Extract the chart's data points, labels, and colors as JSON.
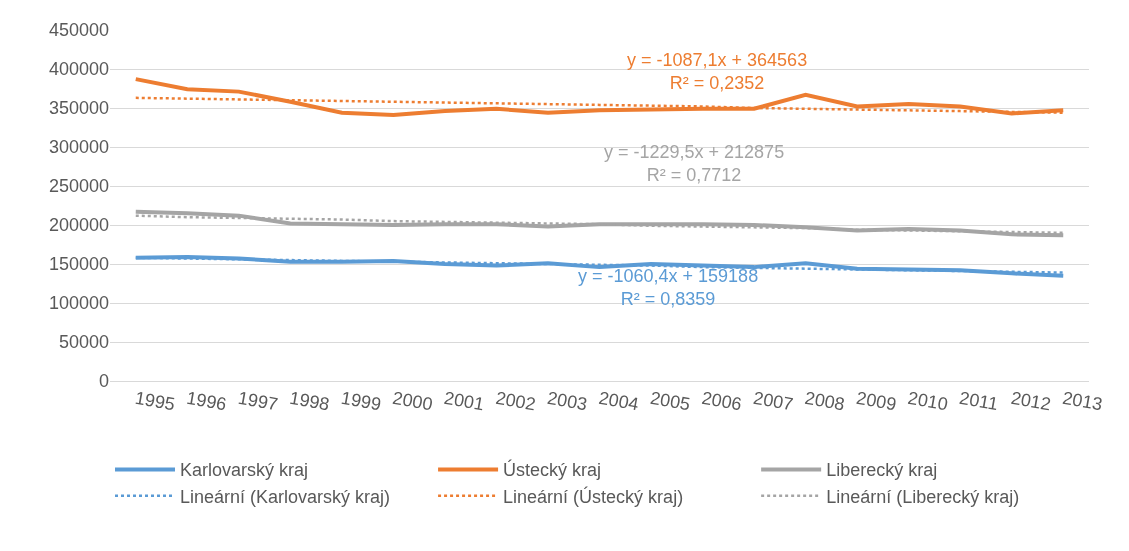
{
  "chart_data": {
    "type": "line",
    "categories": [
      "1995",
      "1996",
      "1997",
      "1998",
      "1999",
      "2000",
      "2001",
      "2002",
      "2003",
      "2004",
      "2005",
      "2006",
      "2007",
      "2008",
      "2009",
      "2010",
      "2011",
      "2012",
      "2013"
    ],
    "series": [
      {
        "name": "Karlovarský kraj",
        "color": "#5b9bd5",
        "values": [
          158000,
          159000,
          157000,
          153000,
          153000,
          154000,
          150000,
          148000,
          151000,
          146000,
          150000,
          148000,
          146000,
          151000,
          144000,
          143000,
          142000,
          138000,
          135000
        ]
      },
      {
        "name": "Ústecký kraj",
        "color": "#ed7d31",
        "values": [
          387000,
          374000,
          371000,
          358000,
          344000,
          341000,
          346000,
          349000,
          344000,
          347000,
          348000,
          349000,
          349000,
          367000,
          352000,
          355000,
          352000,
          343000,
          347000
        ]
      },
      {
        "name": "Liberecký kraj",
        "color": "#a5a5a5",
        "values": [
          217000,
          215000,
          212000,
          202000,
          201000,
          200000,
          201000,
          201000,
          198000,
          201000,
          201000,
          201000,
          200000,
          197000,
          193000,
          195000,
          193000,
          188000,
          187000
        ]
      },
      {
        "name": "Lineární (Karlovarský kraj)",
        "color": "#5b9bd5",
        "type": "line",
        "line_style": "dotted",
        "values": [
          158000,
          157000,
          156000,
          155000,
          154000,
          153000,
          152000,
          151000,
          150000,
          149000,
          148000,
          146000,
          145000,
          144000,
          143000,
          142000,
          141000,
          140000,
          139000
        ]
      },
      {
        "name": "Lineární (Ústecký kraj)",
        "color": "#ed7d31",
        "type": "line",
        "line_style": "dotted",
        "values": [
          363000,
          362000,
          361000,
          360000,
          359000,
          358000,
          357000,
          356000,
          355000,
          354000,
          353000,
          352000,
          350000,
          349000,
          348000,
          347000,
          346000,
          345000,
          344000
        ]
      },
      {
        "name": "Lineární (Liberecký kraj)",
        "color": "#a5a5a5",
        "type": "line",
        "line_style": "dotted",
        "values": [
          212000,
          210000,
          209000,
          208000,
          207000,
          205000,
          204000,
          203000,
          202000,
          201000,
          199000,
          198000,
          197000,
          196000,
          194000,
          193000,
          192000,
          191000,
          190000
        ]
      }
    ],
    "annotations": [
      "y = -1060,4x + 159188\nR² = 0,8359",
      "y = -1087,1x + 364563\nR² = 0,2352",
      "y = -1229,5x + 212875\nR² = 0,7712"
    ],
    "ylim": [
      0,
      450000
    ],
    "yticks": [
      0,
      50000,
      100000,
      150000,
      200000,
      250000,
      300000,
      350000,
      400000,
      450000
    ],
    "grid": "y",
    "legend": "bottom",
    "line_style": "solid",
    "marker": "none"
  }
}
